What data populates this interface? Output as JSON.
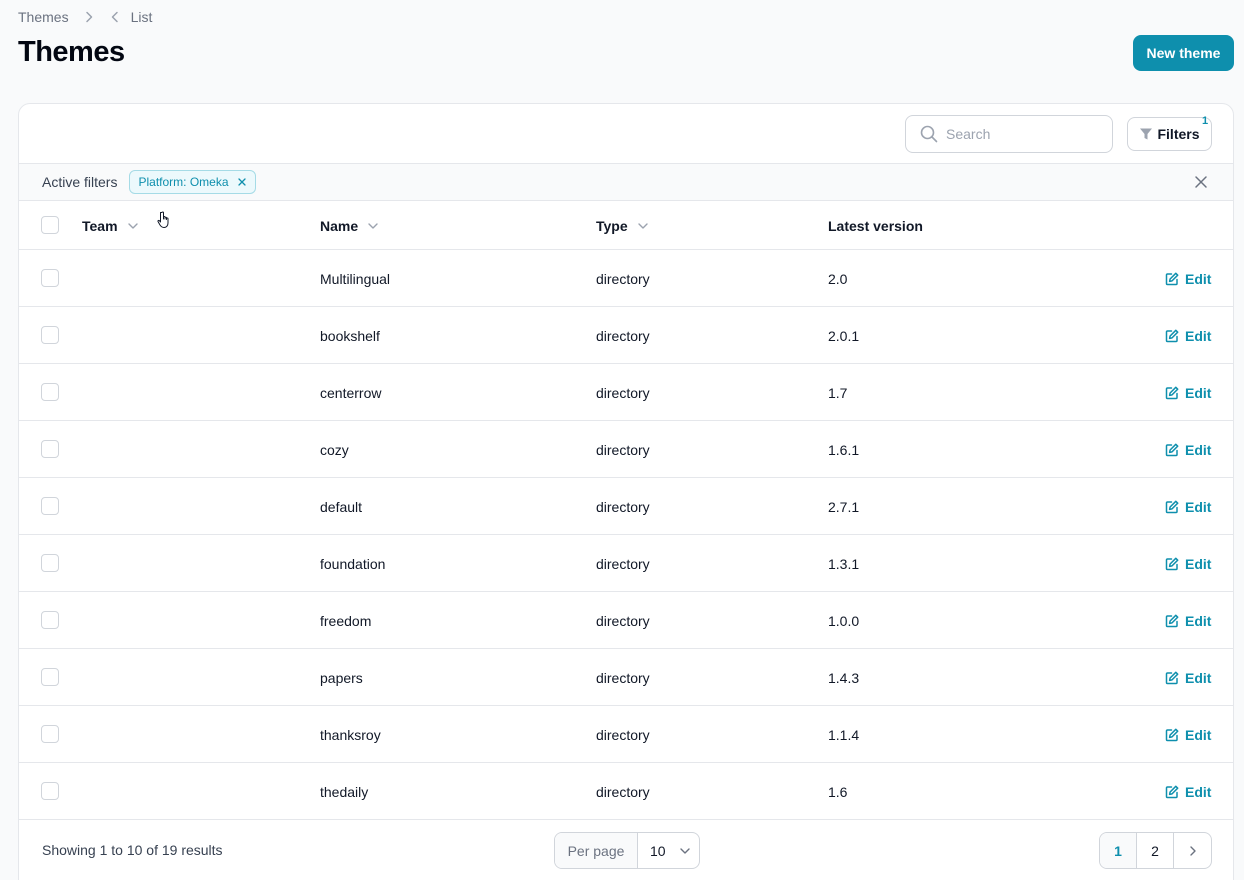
{
  "breadcrumb": {
    "root": "Themes",
    "current": "List"
  },
  "page": {
    "title": "Themes",
    "new_button": "New theme"
  },
  "toolbar": {
    "search_placeholder": "Search",
    "filters_label": "Filters",
    "filters_count": "1"
  },
  "active_filters": {
    "label": "Active filters",
    "chip": "Platform: Omeka"
  },
  "table": {
    "headers": {
      "team": "Team",
      "name": "Name",
      "type": "Type",
      "latest_version": "Latest version"
    },
    "edit_label": "Edit",
    "rows": [
      {
        "name": "Multilingual",
        "type": "directory",
        "version": "2.0"
      },
      {
        "name": "bookshelf",
        "type": "directory",
        "version": "2.0.1"
      },
      {
        "name": "centerrow",
        "type": "directory",
        "version": "1.7"
      },
      {
        "name": "cozy",
        "type": "directory",
        "version": "1.6.1"
      },
      {
        "name": "default",
        "type": "directory",
        "version": "2.7.1"
      },
      {
        "name": "foundation",
        "type": "directory",
        "version": "1.3.1"
      },
      {
        "name": "freedom",
        "type": "directory",
        "version": "1.0.0"
      },
      {
        "name": "papers",
        "type": "directory",
        "version": "1.4.3"
      },
      {
        "name": "thanksroy",
        "type": "directory",
        "version": "1.1.4"
      },
      {
        "name": "thedaily",
        "type": "directory",
        "version": "1.6"
      }
    ]
  },
  "footer": {
    "showing": "Showing 1 to 10 of 19 results",
    "per_page_label": "Per page",
    "per_page_value": "10",
    "pages": [
      "1",
      "2"
    ]
  },
  "colors": {
    "accent": "#0e8fad",
    "border": "#e5e7eb",
    "background": "#f9fafb"
  }
}
